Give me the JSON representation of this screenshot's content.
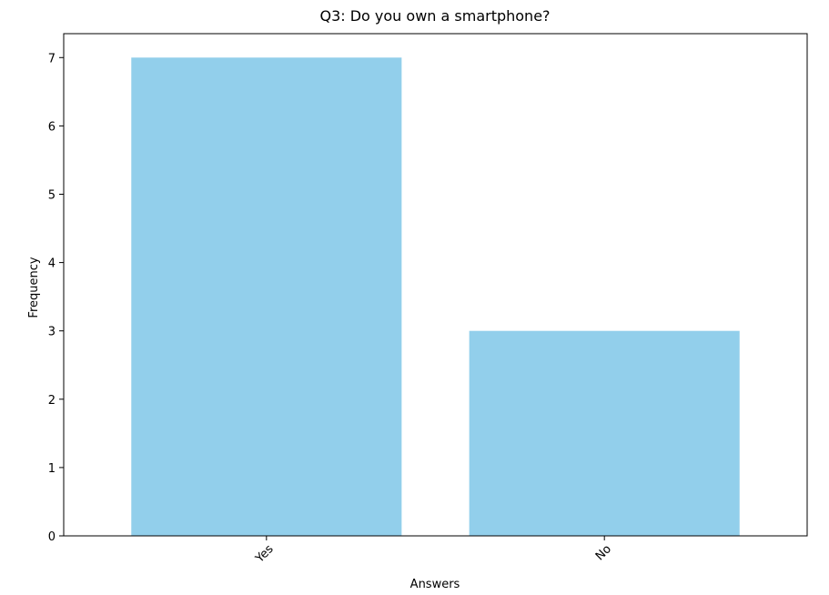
{
  "chart_data": {
    "type": "bar",
    "title": "Q3: Do you own a smartphone?",
    "xlabel": "Answers",
    "ylabel": "Frequency",
    "categories": [
      "Yes",
      "No"
    ],
    "values": [
      7,
      3
    ],
    "ylim": [
      0,
      7.35
    ],
    "yticks": [
      0,
      1,
      2,
      3,
      4,
      5,
      6,
      7
    ],
    "bar_color": "#92cfeb",
    "grid": false,
    "legend": "none"
  }
}
